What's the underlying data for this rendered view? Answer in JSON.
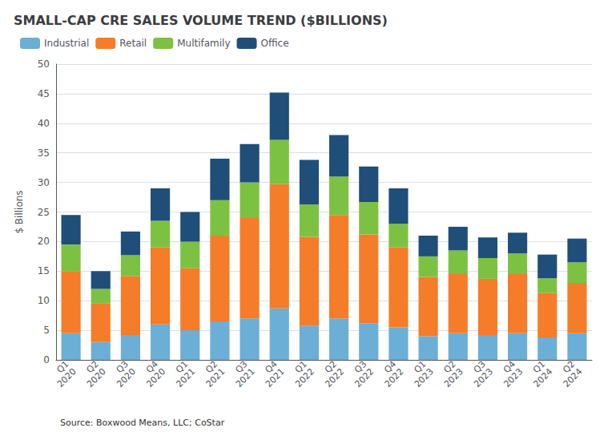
{
  "chart_data": {
    "type": "bar",
    "title": "SMALL-CAP CRE SALES VOLUME TREND ($BILLIONS)",
    "ylabel": "$ Billions",
    "source": "Source: Boxwood Means, LLC; CoStar",
    "categories": [
      "Q1\n2020",
      "Q2\n2020",
      "Q3\n2020",
      "Q4\n2020",
      "Q1\n2021",
      "Q2\n2021",
      "Q3\n2021",
      "Q4\n2021",
      "Q1\n2022",
      "Q2\n2022",
      "Q3\n2022",
      "Q4\n2022",
      "Q1\n2023",
      "Q2\n2023",
      "Q3\n2023",
      "Q4\n2023",
      "Q1\n2024",
      "Q2\n2024"
    ],
    "series": [
      {
        "name": "Industrial",
        "color": "#6baed6",
        "values": [
          4.5,
          3.0,
          4.2,
          6.0,
          5.0,
          6.5,
          7.0,
          8.7,
          5.8,
          7.0,
          6.2,
          5.5,
          4.0,
          4.5,
          4.2,
          4.5,
          3.8,
          4.5
        ]
      },
      {
        "name": "Retail",
        "color": "#f57c28",
        "values": [
          10.5,
          6.5,
          10.0,
          13.0,
          10.5,
          14.5,
          17.0,
          21.0,
          15.0,
          17.5,
          15.0,
          13.5,
          10.0,
          10.0,
          9.5,
          10.0,
          7.5,
          8.5
        ]
      },
      {
        "name": "Multifamily",
        "color": "#7dc142",
        "values": [
          4.5,
          2.5,
          3.5,
          4.5,
          4.5,
          6.0,
          6.0,
          7.5,
          5.5,
          6.5,
          5.5,
          4.0,
          3.5,
          4.0,
          3.5,
          3.5,
          2.5,
          3.5
        ]
      },
      {
        "name": "Office",
        "color": "#1f4e79",
        "values": [
          5.0,
          3.0,
          4.0,
          5.5,
          5.0,
          7.0,
          6.5,
          8.0,
          7.5,
          7.0,
          6.0,
          6.0,
          3.5,
          4.0,
          3.5,
          3.5,
          4.0,
          4.0
        ]
      }
    ],
    "stacked": true,
    "ylim": [
      0,
      50
    ],
    "yticks": [
      0,
      5,
      10,
      15,
      20,
      25,
      30,
      35,
      40,
      45,
      50
    ],
    "grid": true,
    "legend": "top"
  }
}
